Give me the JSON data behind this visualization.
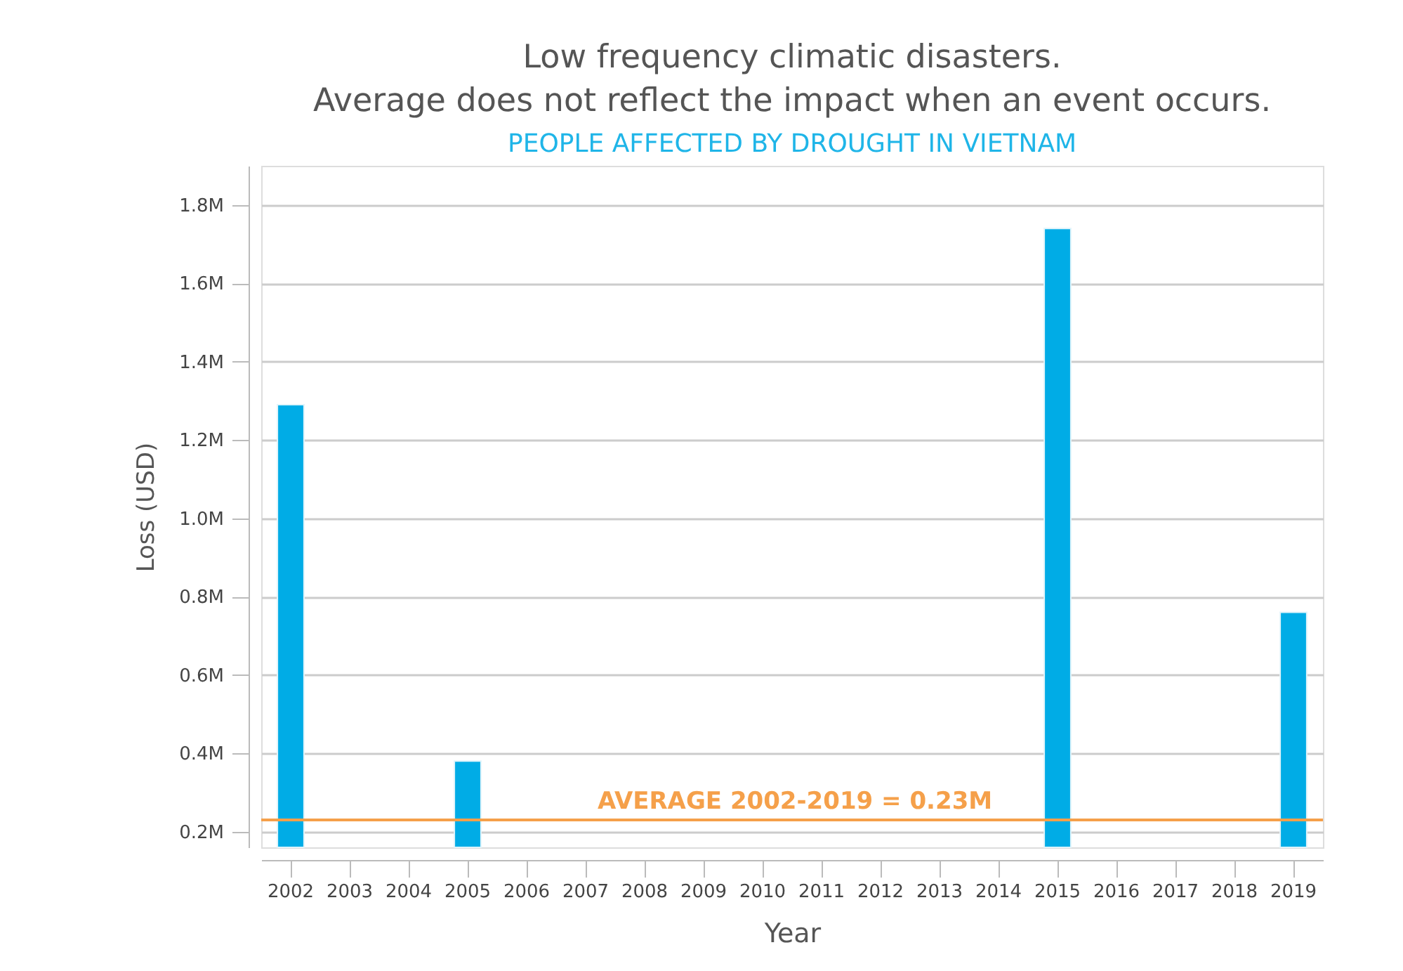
{
  "chart_data": {
    "type": "bar",
    "title": [
      "Low frequency climatic disasters.",
      "Average does not reflect the impact when an event occurs."
    ],
    "subtitle": "PEOPLE AFFECTED BY DROUGHT IN VIETNAM",
    "xlabel": "Year",
    "ylabel": "Loss (USD)",
    "categories": [
      "2002",
      "2003",
      "2004",
      "2005",
      "2006",
      "2007",
      "2008",
      "2009",
      "2010",
      "2011",
      "2012",
      "2013",
      "2014",
      "2015",
      "2016",
      "2017",
      "2018",
      "2019"
    ],
    "values": [
      1.29,
      null,
      null,
      0.38,
      null,
      null,
      null,
      null,
      null,
      null,
      null,
      null,
      null,
      1.74,
      null,
      null,
      null,
      0.76
    ],
    "color": "#00ace6",
    "ylim": [
      0.16,
      1.9
    ],
    "yticks": [
      {
        "value": 0.2,
        "label": "0.2M"
      },
      {
        "value": 0.4,
        "label": "0.4M"
      },
      {
        "value": 0.6,
        "label": "0.6M"
      },
      {
        "value": 0.8,
        "label": "0.8M"
      },
      {
        "value": 1.0,
        "label": "1.0M"
      },
      {
        "value": 1.2,
        "label": "1.2M"
      },
      {
        "value": 1.4,
        "label": "1.4M"
      },
      {
        "value": 1.6,
        "label": "1.6M"
      },
      {
        "value": 1.8,
        "label": "1.8M"
      }
    ],
    "grid": "y",
    "ref_lines": [
      {
        "axis": "y",
        "value": 0.23,
        "label": "AVERAGE 2002-2019 = 0.23M",
        "color": "#f5a04a"
      }
    ]
  }
}
